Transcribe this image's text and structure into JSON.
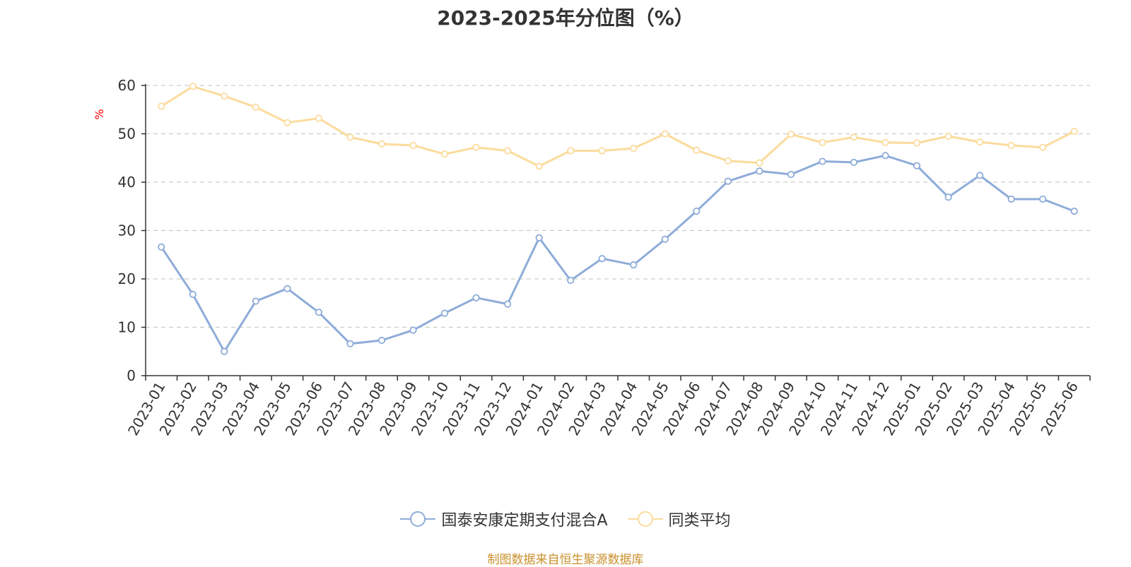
{
  "title": "2023-2025年分位图（%）",
  "source_note": "制图数据来自恒生聚源数据库",
  "colors": {
    "series_fund": "#8eacd8",
    "series_avg": "#fbdb9c",
    "unit_label": "#ff0000",
    "source_note": "#c8902a",
    "grid": "#cccccc",
    "axis": "#333333"
  },
  "chart_data": {
    "type": "line",
    "title": "2023-2025年分位图（%）",
    "ylabel": "%",
    "xlabel": "",
    "ylim": [
      0,
      60
    ],
    "yticks": [
      0,
      10,
      20,
      30,
      40,
      50,
      60
    ],
    "grid": "horizontal dashed",
    "legend_position": "bottom-center",
    "categories": [
      "2023-01",
      "2023-02",
      "2023-03",
      "2023-04",
      "2023-05",
      "2023-06",
      "2023-07",
      "2023-08",
      "2023-09",
      "2023-10",
      "2023-11",
      "2023-12",
      "2024-01",
      "2024-02",
      "2024-03",
      "2024-04",
      "2024-05",
      "2024-06",
      "2024-07",
      "2024-08",
      "2024-09",
      "2024-10",
      "2024-11",
      "2024-12",
      "2025-01",
      "2025-02",
      "2025-03",
      "2025-04",
      "2025-05",
      "2025-06"
    ],
    "series": [
      {
        "name": "国泰安康定期支付混合A",
        "color": "#8eacd8",
        "values": [
          26.6,
          16.8,
          5.0,
          15.4,
          18.0,
          13.1,
          6.6,
          7.3,
          9.4,
          12.9,
          16.1,
          14.8,
          28.5,
          19.7,
          24.2,
          22.9,
          28.2,
          34.0,
          40.2,
          42.3,
          41.6,
          44.3,
          44.1,
          45.5,
          43.4,
          36.9,
          41.4,
          36.5,
          36.5,
          34.0
        ]
      },
      {
        "name": "同类平均",
        "color": "#fbdb9c",
        "values": [
          55.7,
          59.8,
          57.8,
          55.5,
          52.3,
          53.2,
          49.3,
          47.9,
          47.6,
          45.8,
          47.2,
          46.5,
          43.3,
          46.5,
          46.5,
          47.0,
          50.0,
          46.6,
          44.4,
          44.0,
          49.9,
          48.2,
          49.3,
          48.2,
          48.1,
          49.5,
          48.3,
          47.6,
          47.2,
          50.5
        ]
      }
    ]
  }
}
